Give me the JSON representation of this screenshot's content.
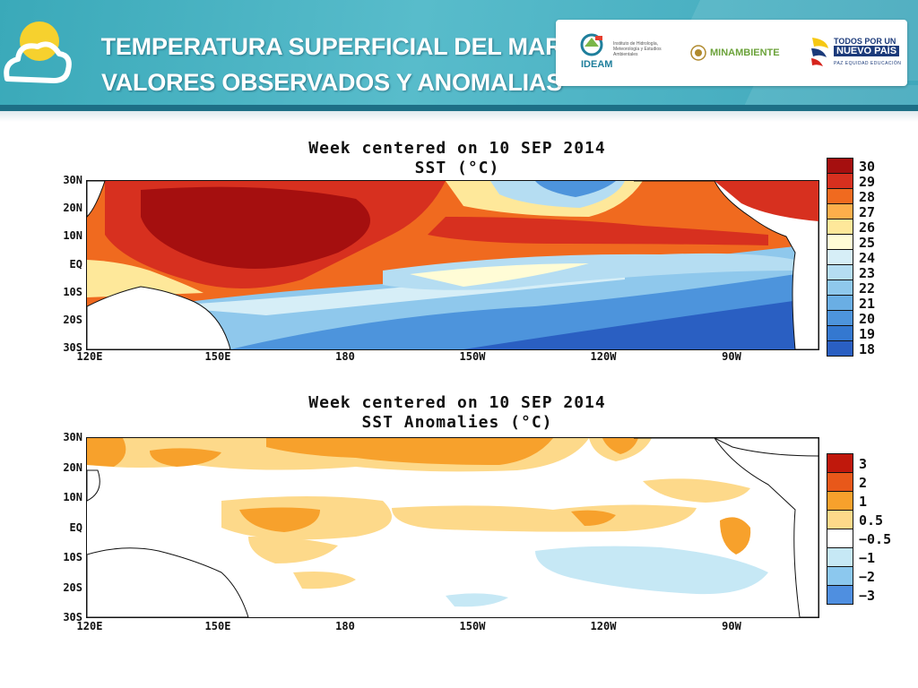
{
  "header": {
    "title_line1": "TEMPERATURA SUPERFICIAL DEL MAR",
    "title_line2": "VALORES OBSERVADOS Y ANOMALIAS",
    "logos": {
      "ideam_name": "IDEAM",
      "ideam_sub": "Instituto de Hidrología, Meteorología y Estudios Ambientales",
      "minambiente": "MINAMBIENTE",
      "todos_line1": "TODOS POR UN",
      "todos_line2": "NUEVO PAÍS",
      "todos_line3": "PAZ  EQUIDAD  EDUCACIÓN"
    },
    "colors": {
      "header_bg": "#4ab4c4",
      "header_line": "#1d6f86"
    }
  },
  "lat_labels": [
    "30N",
    "20N",
    "10N",
    "EQ",
    "10S",
    "20S",
    "30S"
  ],
  "lon_labels": [
    "120E",
    "150E",
    "180",
    "150W",
    "120W",
    "90W"
  ],
  "sst_map": {
    "title_line1": "Week centered on 10 SEP 2014",
    "title_line2": "SST (°C)",
    "legend": [
      {
        "label": "30",
        "color": "#a50f0f"
      },
      {
        "label": "29",
        "color": "#d7301f"
      },
      {
        "label": "28",
        "color": "#f06a1f"
      },
      {
        "label": "27",
        "color": "#fdae4b"
      },
      {
        "label": "26",
        "color": "#fee89a"
      },
      {
        "label": "25",
        "color": "#fffcd6"
      },
      {
        "label": "24",
        "color": "#d6eef7"
      },
      {
        "label": "23",
        "color": "#b5ddf2"
      },
      {
        "label": "22",
        "color": "#8fc8ec"
      },
      {
        "label": "21",
        "color": "#6aaee4"
      },
      {
        "label": "20",
        "color": "#4d94dc"
      },
      {
        "label": "19",
        "color": "#3478d0"
      },
      {
        "label": "18",
        "color": "#2a5fc2"
      }
    ]
  },
  "anomaly_map": {
    "title_line1": "Week centered on 10 SEP 2014",
    "title_line2": "SST Anomalies (°C)",
    "legend": [
      {
        "label": "3",
        "color": "#c0180c"
      },
      {
        "label": "2",
        "color": "#e8581a"
      },
      {
        "label": "1",
        "color": "#f7a12c"
      },
      {
        "label": "0.5",
        "color": "#fdd98a"
      },
      {
        "label": "−0.5",
        "color": "#ffffff"
      },
      {
        "label": "−1",
        "color": "#c6e8f5"
      },
      {
        "label": "−2",
        "color": "#8cc8ee"
      },
      {
        "label": "−3",
        "color": "#4f8fe0"
      }
    ]
  }
}
